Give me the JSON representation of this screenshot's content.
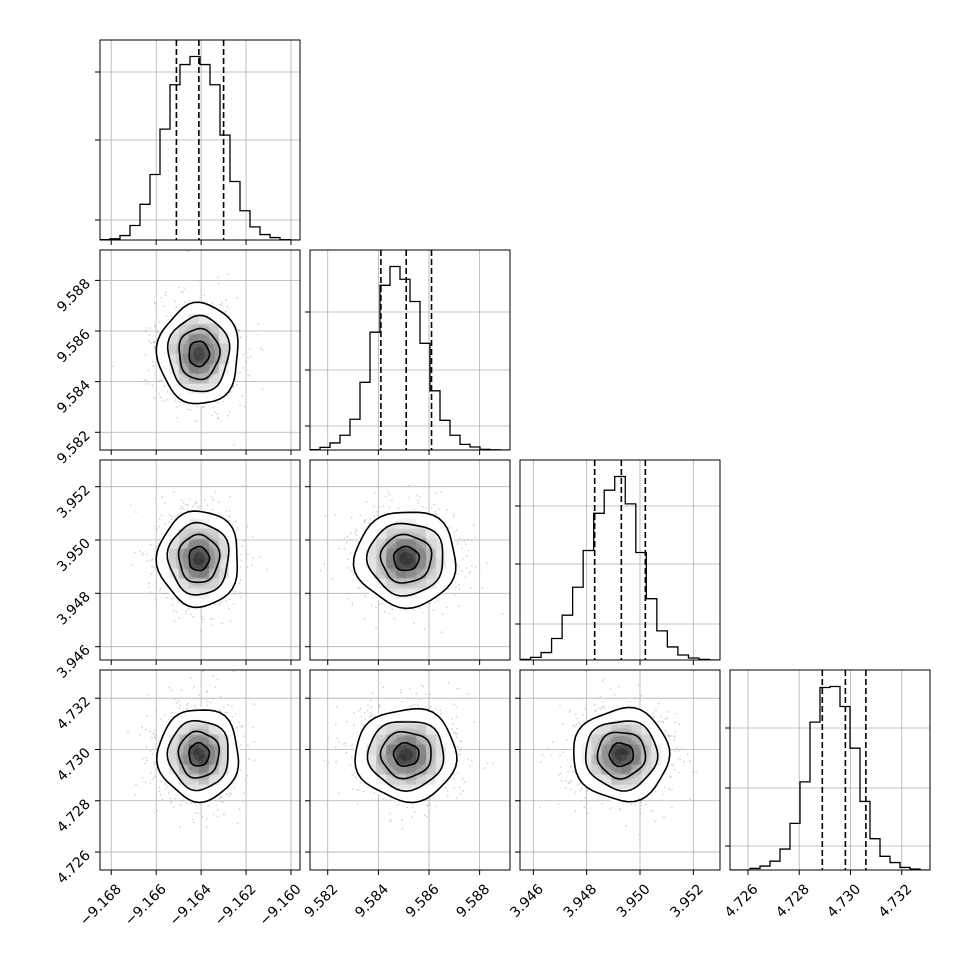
{
  "chart_data": {
    "type": "corner",
    "parameters": [
      {
        "index": 0,
        "range": [
          -9.1685,
          -9.1596
        ],
        "ticks": [
          -9.168,
          -9.166,
          -9.164,
          -9.162,
          -9.16
        ],
        "tick_labels": [
          "−9.168",
          "−9.166",
          "−9.164",
          "−9.162",
          "−9.160"
        ],
        "mean": -9.1641,
        "sd": 0.0009,
        "quantiles": [
          -9.1651,
          -9.1641,
          -9.163
        ],
        "hist_counts": [
          0.2,
          0.6,
          2.2,
          7.2,
          17.7,
          32.5,
          55,
          77,
          87,
          91,
          87,
          77,
          52,
          29,
          14.5,
          6.5,
          2.7,
          1.2,
          0.2,
          0
        ]
      },
      {
        "index": 1,
        "range": [
          9.5813,
          9.5892
        ],
        "ticks": [
          9.582,
          9.584,
          9.586,
          9.588
        ],
        "tick_labels": [
          "9.582",
          "9.584",
          "9.586",
          "9.588"
        ],
        "mean": 9.5851,
        "sd": 0.001,
        "quantiles": [
          9.5841,
          9.5851,
          9.5861
        ],
        "hist_counts": [
          0.2,
          1.3,
          3.5,
          7.3,
          15.2,
          33.5,
          58.3,
          81.5,
          90.8,
          84.5,
          73.5,
          52.8,
          29.3,
          14.7,
          7.3,
          2.8,
          1.5,
          0.3,
          0.1,
          0
        ]
      },
      {
        "index": 2,
        "range": [
          3.9455,
          3.953
        ],
        "ticks": [
          3.946,
          3.948,
          3.95,
          3.952
        ],
        "tick_labels": [
          "3.946",
          "3.948",
          "3.950",
          "3.952"
        ],
        "mean": 3.9493,
        "sd": 0.0009,
        "quantiles": [
          3.9483,
          3.9493,
          3.9502
        ],
        "hist_counts": [
          0.3,
          1.3,
          3.7,
          10.7,
          22.3,
          36.2,
          54.5,
          73,
          84.5,
          91.3,
          77.7,
          53.5,
          30.5,
          14.5,
          6.5,
          2.5,
          1,
          0.3,
          0
        ]
      },
      {
        "index": 3,
        "range": [
          4.7253,
          4.7331
        ],
        "ticks": [
          4.726,
          4.728,
          4.73,
          4.732
        ],
        "tick_labels": [
          "4.726",
          "4.728",
          "4.730",
          "4.732"
        ],
        "mean": 4.7298,
        "sd": 0.0009,
        "quantiles": [
          4.7289,
          4.7298,
          4.7306
        ],
        "hist_counts": [
          0,
          0,
          0.8,
          2,
          4.5,
          10.7,
          23.8,
          45,
          75.5,
          93.2,
          93.7,
          83.5,
          62.2,
          35,
          16,
          7,
          3.8,
          1.3,
          0.5,
          0
        ]
      }
    ],
    "hist_yticks": [
      [
        0.1,
        0.5,
        0.84
      ],
      [
        0.12,
        0.4,
        0.69
      ],
      [
        0.18,
        0.48,
        0.77
      ],
      [
        0.12,
        0.41,
        0.71
      ]
    ],
    "contour_levels_sigma": [
      0.5,
      1,
      1.5,
      2
    ],
    "colors": {
      "line": "#000000",
      "grid": "#b0b0b0",
      "points": "#b4b4b4"
    }
  }
}
